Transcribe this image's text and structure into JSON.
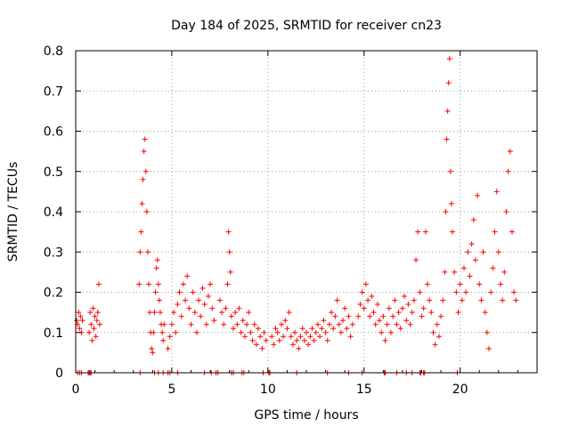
{
  "chart_data": {
    "type": "scatter",
    "title": "Day 184 of 2025, SRMTID for receiver cn23",
    "xlabel": "GPS time / hours",
    "ylabel": "SRMTID / TECUs",
    "xlim": [
      0,
      24
    ],
    "ylim": [
      0,
      0.8
    ],
    "grid": true,
    "marker": "+",
    "color": "#ff0000",
    "x_ticks": [
      0,
      5,
      10,
      15,
      20
    ],
    "x_tick_labels": [
      "0",
      "5",
      "10",
      "15",
      "20"
    ],
    "y_ticks": [
      0,
      0.1,
      0.2,
      0.3,
      0.4,
      0.5,
      0.6,
      0.7,
      0.8
    ],
    "y_tick_labels": [
      "0",
      "0.1",
      "0.2",
      "0.3",
      "0.4",
      "0.5",
      "0.6",
      "0.7",
      "0.8"
    ],
    "series": [
      {
        "name": "SRMTID",
        "points": [
          [
            0.05,
            0.13
          ],
          [
            0.1,
            0.12
          ],
          [
            0.15,
            0.15
          ],
          [
            0.2,
            0.11
          ],
          [
            0.25,
            0.14
          ],
          [
            0.3,
            0.1
          ],
          [
            0.35,
            0.13
          ],
          [
            0.7,
            0.1
          ],
          [
            0.75,
            0.15
          ],
          [
            0.8,
            0.12
          ],
          [
            0.85,
            0.08
          ],
          [
            0.9,
            0.16
          ],
          [
            0.95,
            0.11
          ],
          [
            1.0,
            0.14
          ],
          [
            1.05,
            0.09
          ],
          [
            1.1,
            0.13
          ],
          [
            1.15,
            0.15
          ],
          [
            1.2,
            0.22
          ],
          [
            1.25,
            0.12
          ],
          [
            3.3,
            0.22
          ],
          [
            3.35,
            0.3
          ],
          [
            3.4,
            0.35
          ],
          [
            3.45,
            0.42
          ],
          [
            3.5,
            0.48
          ],
          [
            3.55,
            0.55
          ],
          [
            3.6,
            0.58
          ],
          [
            3.65,
            0.5
          ],
          [
            3.7,
            0.4
          ],
          [
            3.75,
            0.3
          ],
          [
            3.8,
            0.22
          ],
          [
            3.85,
            0.15
          ],
          [
            3.9,
            0.1
          ],
          [
            3.95,
            0.06
          ],
          [
            4.0,
            0.05
          ],
          [
            4.05,
            0.1
          ],
          [
            4.1,
            0.15
          ],
          [
            4.15,
            0.2
          ],
          [
            4.2,
            0.26
          ],
          [
            4.25,
            0.28
          ],
          [
            4.3,
            0.22
          ],
          [
            4.35,
            0.18
          ],
          [
            4.4,
            0.15
          ],
          [
            4.45,
            0.12
          ],
          [
            4.5,
            0.1
          ],
          [
            4.55,
            0.08
          ],
          [
            4.6,
            0.12
          ],
          [
            4.8,
            0.06
          ],
          [
            4.9,
            0.09
          ],
          [
            5.0,
            0.12
          ],
          [
            5.1,
            0.15
          ],
          [
            5.2,
            0.1
          ],
          [
            5.3,
            0.17
          ],
          [
            5.4,
            0.2
          ],
          [
            5.5,
            0.14
          ],
          [
            5.6,
            0.22
          ],
          [
            5.7,
            0.18
          ],
          [
            5.8,
            0.24
          ],
          [
            5.9,
            0.16
          ],
          [
            6.0,
            0.12
          ],
          [
            6.1,
            0.2
          ],
          [
            6.2,
            0.15
          ],
          [
            6.3,
            0.1
          ],
          [
            6.4,
            0.18
          ],
          [
            6.5,
            0.14
          ],
          [
            6.6,
            0.21
          ],
          [
            6.7,
            0.17
          ],
          [
            6.8,
            0.12
          ],
          [
            6.9,
            0.19
          ],
          [
            7.0,
            0.22
          ],
          [
            7.1,
            0.16
          ],
          [
            7.2,
            0.13
          ],
          [
            7.5,
            0.18
          ],
          [
            7.6,
            0.15
          ],
          [
            7.7,
            0.12
          ],
          [
            7.8,
            0.16
          ],
          [
            7.9,
            0.22
          ],
          [
            7.95,
            0.35
          ],
          [
            8.0,
            0.3
          ],
          [
            8.05,
            0.25
          ],
          [
            8.1,
            0.14
          ],
          [
            8.2,
            0.11
          ],
          [
            8.3,
            0.15
          ],
          [
            8.4,
            0.12
          ],
          [
            8.5,
            0.16
          ],
          [
            8.6,
            0.1
          ],
          [
            8.7,
            0.13
          ],
          [
            8.8,
            0.09
          ],
          [
            8.9,
            0.12
          ],
          [
            9.0,
            0.15
          ],
          [
            9.1,
            0.1
          ],
          [
            9.2,
            0.08
          ],
          [
            9.3,
            0.12
          ],
          [
            9.4,
            0.07
          ],
          [
            9.5,
            0.11
          ],
          [
            9.6,
            0.09
          ],
          [
            9.7,
            0.06
          ],
          [
            9.8,
            0.1
          ],
          [
            9.9,
            0.08
          ],
          [
            10.2,
            0.09
          ],
          [
            10.3,
            0.07
          ],
          [
            10.4,
            0.11
          ],
          [
            10.5,
            0.1
          ],
          [
            10.6,
            0.08
          ],
          [
            10.7,
            0.12
          ],
          [
            10.8,
            0.09
          ],
          [
            10.9,
            0.13
          ],
          [
            11.0,
            0.11
          ],
          [
            11.1,
            0.15
          ],
          [
            11.2,
            0.09
          ],
          [
            11.3,
            0.07
          ],
          [
            11.4,
            0.1
          ],
          [
            11.5,
            0.08
          ],
          [
            11.6,
            0.06
          ],
          [
            11.7,
            0.09
          ],
          [
            11.8,
            0.11
          ],
          [
            11.9,
            0.08
          ],
          [
            12.0,
            0.1
          ],
          [
            12.1,
            0.07
          ],
          [
            12.2,
            0.09
          ],
          [
            12.3,
            0.11
          ],
          [
            12.4,
            0.08
          ],
          [
            12.5,
            0.1
          ],
          [
            12.6,
            0.12
          ],
          [
            12.7,
            0.09
          ],
          [
            12.8,
            0.11
          ],
          [
            12.9,
            0.13
          ],
          [
            13.0,
            0.1
          ],
          [
            13.1,
            0.08
          ],
          [
            13.2,
            0.12
          ],
          [
            13.3,
            0.15
          ],
          [
            13.4,
            0.11
          ],
          [
            13.5,
            0.14
          ],
          [
            13.6,
            0.18
          ],
          [
            13.7,
            0.12
          ],
          [
            13.8,
            0.1
          ],
          [
            13.9,
            0.13
          ],
          [
            14.0,
            0.16
          ],
          [
            14.1,
            0.11
          ],
          [
            14.2,
            0.14
          ],
          [
            14.3,
            0.09
          ],
          [
            14.4,
            0.12
          ],
          [
            14.7,
            0.14
          ],
          [
            14.8,
            0.17
          ],
          [
            14.9,
            0.2
          ],
          [
            15.0,
            0.16
          ],
          [
            15.1,
            0.22
          ],
          [
            15.2,
            0.18
          ],
          [
            15.3,
            0.14
          ],
          [
            15.4,
            0.19
          ],
          [
            15.5,
            0.15
          ],
          [
            15.6,
            0.12
          ],
          [
            15.7,
            0.17
          ],
          [
            15.8,
            0.13
          ],
          [
            15.9,
            0.1
          ],
          [
            16.0,
            0.14
          ],
          [
            16.1,
            0.08
          ],
          [
            16.2,
            0.12
          ],
          [
            16.3,
            0.16
          ],
          [
            16.4,
            0.1
          ],
          [
            16.5,
            0.14
          ],
          [
            16.6,
            0.18
          ],
          [
            16.7,
            0.12
          ],
          [
            16.8,
            0.15
          ],
          [
            16.9,
            0.11
          ],
          [
            17.0,
            0.16
          ],
          [
            17.1,
            0.19
          ],
          [
            17.2,
            0.13
          ],
          [
            17.3,
            0.17
          ],
          [
            17.4,
            0.12
          ],
          [
            17.5,
            0.15
          ],
          [
            17.6,
            0.18
          ],
          [
            17.7,
            0.28
          ],
          [
            17.8,
            0.35
          ],
          [
            17.9,
            0.2
          ],
          [
            18.0,
            0.14
          ],
          [
            18.1,
            0.16
          ],
          [
            18.2,
            0.35
          ],
          [
            18.3,
            0.22
          ],
          [
            18.4,
            0.18
          ],
          [
            18.5,
            0.15
          ],
          [
            18.6,
            0.1
          ],
          [
            18.7,
            0.07
          ],
          [
            18.8,
            0.12
          ],
          [
            18.9,
            0.09
          ],
          [
            19.0,
            0.14
          ],
          [
            19.1,
            0.18
          ],
          [
            19.2,
            0.25
          ],
          [
            19.25,
            0.4
          ],
          [
            19.3,
            0.58
          ],
          [
            19.35,
            0.65
          ],
          [
            19.4,
            0.72
          ],
          [
            19.45,
            0.78
          ],
          [
            19.5,
            0.5
          ],
          [
            19.55,
            0.42
          ],
          [
            19.6,
            0.35
          ],
          [
            19.7,
            0.25
          ],
          [
            19.8,
            0.2
          ],
          [
            19.9,
            0.15
          ],
          [
            20.0,
            0.22
          ],
          [
            20.1,
            0.18
          ],
          [
            20.2,
            0.26
          ],
          [
            20.3,
            0.2
          ],
          [
            20.4,
            0.3
          ],
          [
            20.5,
            0.24
          ],
          [
            20.6,
            0.32
          ],
          [
            20.7,
            0.38
          ],
          [
            20.8,
            0.28
          ],
          [
            20.9,
            0.44
          ],
          [
            21.0,
            0.22
          ],
          [
            21.1,
            0.18
          ],
          [
            21.2,
            0.3
          ],
          [
            21.3,
            0.15
          ],
          [
            21.4,
            0.1
          ],
          [
            21.5,
            0.06
          ],
          [
            21.6,
            0.2
          ],
          [
            21.7,
            0.26
          ],
          [
            21.8,
            0.35
          ],
          [
            21.9,
            0.45
          ],
          [
            22.0,
            0.3
          ],
          [
            22.1,
            0.22
          ],
          [
            22.2,
            0.18
          ],
          [
            22.3,
            0.25
          ],
          [
            22.4,
            0.4
          ],
          [
            22.5,
            0.5
          ],
          [
            22.6,
            0.55
          ],
          [
            22.7,
            0.35
          ],
          [
            22.8,
            0.2
          ],
          [
            22.9,
            0.18
          ]
        ]
      }
    ],
    "zero_points_x": [
      0.1,
      0.2,
      0.3,
      0.65,
      0.7,
      0.75,
      0.8,
      3.35,
      4.1,
      4.3,
      4.55,
      4.8,
      4.9,
      5.3,
      6.7,
      7.05,
      7.3,
      7.4,
      8.1,
      8.2,
      8.65,
      8.75,
      9.75,
      10.05,
      10.1,
      11.5,
      13.1,
      14.2,
      14.9,
      16.05,
      16.1,
      16.7,
      17.2,
      17.5,
      17.9,
      17.95,
      18.1,
      18.15,
      19.85
    ]
  }
}
